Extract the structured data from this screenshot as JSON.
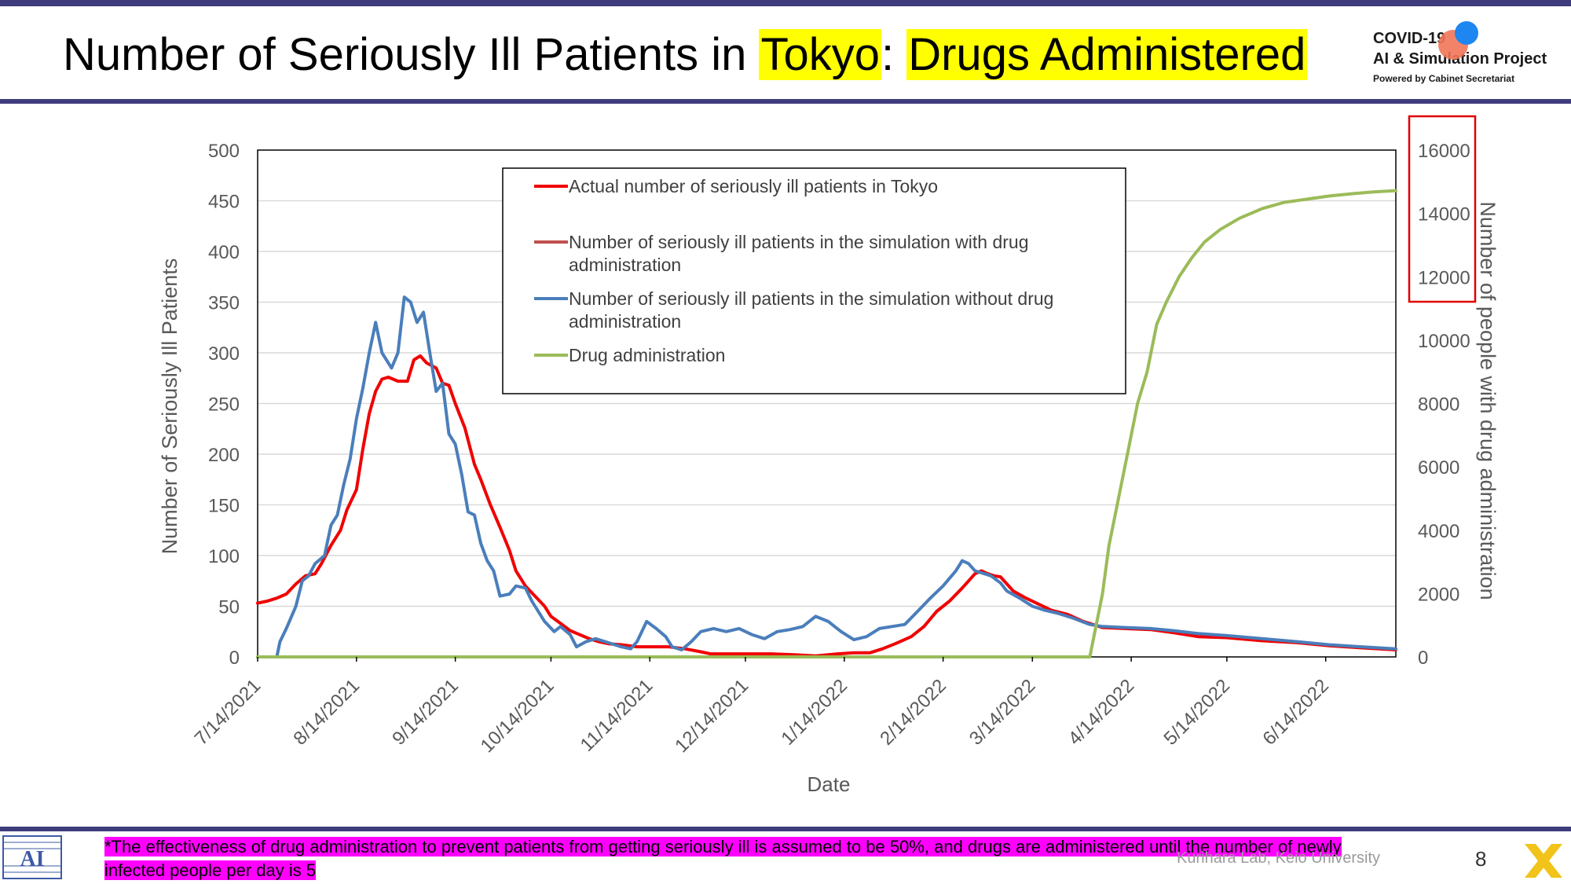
{
  "slide": {
    "title_prefix": "Number of Seriously Ill Patients in ",
    "title_hl1": "Tokyo",
    "title_sep": ": ",
    "title_hl2": "Drugs Administered",
    "logo_line1": "COVID-19",
    "logo_line2": "AI & Simulation Project",
    "logo_line3": "Powered by Cabinet Secretariat",
    "footnote": "*The effectiveness of drug administration to prevent patients from getting seriously ill is assumed to be 50%, and drugs are administered until the number of newly infected people per day is 5",
    "credit": "Kurihara Lab, Keio University",
    "page_number": "8",
    "lab_logo_text": "AI"
  },
  "chart_data": {
    "type": "line",
    "xlabel": "Date",
    "ylabel": "Number of Seriously Ill Patients",
    "y2label": "Number of people with drug administration",
    "ylim": [
      0,
      500
    ],
    "y2lim": [
      0,
      16000
    ],
    "yticks": [
      0,
      50,
      100,
      150,
      200,
      250,
      300,
      350,
      400,
      450,
      500
    ],
    "y2ticks": [
      0,
      2000,
      4000,
      6000,
      8000,
      10000,
      12000,
      14000,
      16000
    ],
    "xlim": [
      "2021-07-14",
      "2022-07-06"
    ],
    "xtick_dates": [
      "2021-07-14",
      "2021-08-14",
      "2021-09-14",
      "2021-10-14",
      "2021-11-14",
      "2021-12-14",
      "2022-01-14",
      "2022-02-14",
      "2022-03-14",
      "2022-04-14",
      "2022-05-14",
      "2022-06-14"
    ],
    "xtick_labels": [
      "7/14/2021",
      "8/14/2021",
      "9/14/2021",
      "10/14/2021",
      "11/14/2021",
      "12/14/2021",
      "1/14/2022",
      "2/14/2022",
      "3/14/2022",
      "4/14/2022",
      "5/14/2022",
      "6/14/2022"
    ],
    "grid": "horizontal",
    "legend_position": "top-center",
    "series": [
      {
        "name": "Actual number of seriously ill patients in Tokyo",
        "color": "#f00000",
        "axis": "left",
        "points": [
          [
            "2021-07-14",
            53
          ],
          [
            "2021-07-17",
            55
          ],
          [
            "2021-07-20",
            58
          ],
          [
            "2021-07-23",
            62
          ],
          [
            "2021-07-26",
            72
          ],
          [
            "2021-07-29",
            80
          ],
          [
            "2021-08-01",
            82
          ],
          [
            "2021-08-03",
            92
          ],
          [
            "2021-08-06",
            110
          ],
          [
            "2021-08-09",
            125
          ],
          [
            "2021-08-11",
            145
          ],
          [
            "2021-08-14",
            165
          ],
          [
            "2021-08-16",
            205
          ],
          [
            "2021-08-18",
            240
          ],
          [
            "2021-08-20",
            262
          ],
          [
            "2021-08-22",
            274
          ],
          [
            "2021-08-24",
            276
          ],
          [
            "2021-08-27",
            272
          ],
          [
            "2021-08-30",
            272
          ],
          [
            "2021-09-01",
            293
          ],
          [
            "2021-09-03",
            297
          ],
          [
            "2021-09-05",
            290
          ],
          [
            "2021-09-08",
            285
          ],
          [
            "2021-09-10",
            270
          ],
          [
            "2021-09-12",
            268
          ],
          [
            "2021-09-14",
            250
          ],
          [
            "2021-09-17",
            226
          ],
          [
            "2021-09-20",
            190
          ],
          [
            "2021-09-22",
            175
          ],
          [
            "2021-09-25",
            150
          ],
          [
            "2021-09-28",
            128
          ],
          [
            "2021-10-01",
            105
          ],
          [
            "2021-10-03",
            85
          ],
          [
            "2021-10-06",
            70
          ],
          [
            "2021-10-09",
            60
          ],
          [
            "2021-10-12",
            50
          ],
          [
            "2021-10-14",
            40
          ],
          [
            "2021-10-17",
            33
          ],
          [
            "2021-10-20",
            26
          ],
          [
            "2021-10-23",
            22
          ],
          [
            "2021-10-26",
            18
          ],
          [
            "2021-10-29",
            15
          ],
          [
            "2021-11-01",
            13
          ],
          [
            "2021-11-05",
            12
          ],
          [
            "2021-11-10",
            10
          ],
          [
            "2021-11-15",
            10
          ],
          [
            "2021-11-20",
            10
          ],
          [
            "2021-11-25",
            8
          ],
          [
            "2021-11-30",
            5
          ],
          [
            "2021-12-03",
            3
          ],
          [
            "2021-12-08",
            3
          ],
          [
            "2021-12-15",
            3
          ],
          [
            "2021-12-22",
            3
          ],
          [
            "2021-12-30",
            2
          ],
          [
            "2022-01-05",
            1
          ],
          [
            "2022-01-12",
            3
          ],
          [
            "2022-01-17",
            4
          ],
          [
            "2022-01-22",
            4
          ],
          [
            "2022-01-26",
            8
          ],
          [
            "2022-01-30",
            13
          ],
          [
            "2022-02-04",
            20
          ],
          [
            "2022-02-08",
            30
          ],
          [
            "2022-02-12",
            45
          ],
          [
            "2022-02-16",
            55
          ],
          [
            "2022-02-20",
            68
          ],
          [
            "2022-02-22",
            75
          ],
          [
            "2022-02-24",
            82
          ],
          [
            "2022-02-26",
            85
          ],
          [
            "2022-02-28",
            82
          ],
          [
            "2022-03-02",
            80
          ],
          [
            "2022-03-04",
            79
          ],
          [
            "2022-03-06",
            72
          ],
          [
            "2022-03-08",
            65
          ],
          [
            "2022-03-12",
            58
          ],
          [
            "2022-03-16",
            52
          ],
          [
            "2022-03-20",
            46
          ],
          [
            "2022-03-25",
            42
          ],
          [
            "2022-03-30",
            35
          ],
          [
            "2022-04-05",
            29
          ],
          [
            "2022-04-12",
            28
          ],
          [
            "2022-04-20",
            27
          ],
          [
            "2022-04-27",
            24
          ],
          [
            "2022-05-05",
            20
          ],
          [
            "2022-05-14",
            19
          ],
          [
            "2022-05-25",
            16
          ],
          [
            "2022-06-05",
            14
          ],
          [
            "2022-06-15",
            11
          ],
          [
            "2022-06-25",
            9
          ],
          [
            "2022-07-06",
            7
          ]
        ]
      },
      {
        "name": "Number of seriously ill patients in the simulation with drug administration",
        "color": "#c0504d",
        "axis": "left",
        "points": []
      },
      {
        "name": "Number of seriously ill patients in the simulation without drug administration",
        "color": "#4a7ebb",
        "axis": "left",
        "points": [
          [
            "2021-07-14",
            0
          ],
          [
            "2021-07-20",
            0
          ],
          [
            "2021-07-21",
            15
          ],
          [
            "2021-07-23",
            28
          ],
          [
            "2021-07-26",
            50
          ],
          [
            "2021-07-28",
            75
          ],
          [
            "2021-07-30",
            80
          ],
          [
            "2021-08-01",
            92
          ],
          [
            "2021-08-04",
            100
          ],
          [
            "2021-08-06",
            130
          ],
          [
            "2021-08-08",
            140
          ],
          [
            "2021-08-10",
            170
          ],
          [
            "2021-08-12",
            195
          ],
          [
            "2021-08-14",
            235
          ],
          [
            "2021-08-16",
            265
          ],
          [
            "2021-08-18",
            300
          ],
          [
            "2021-08-20",
            330
          ],
          [
            "2021-08-22",
            300
          ],
          [
            "2021-08-25",
            285
          ],
          [
            "2021-08-27",
            300
          ],
          [
            "2021-08-29",
            355
          ],
          [
            "2021-08-31",
            350
          ],
          [
            "2021-09-02",
            330
          ],
          [
            "2021-09-04",
            340
          ],
          [
            "2021-09-06",
            300
          ],
          [
            "2021-09-08",
            262
          ],
          [
            "2021-09-10",
            270
          ],
          [
            "2021-09-12",
            220
          ],
          [
            "2021-09-14",
            210
          ],
          [
            "2021-09-16",
            180
          ],
          [
            "2021-09-18",
            143
          ],
          [
            "2021-09-20",
            140
          ],
          [
            "2021-09-22",
            112
          ],
          [
            "2021-09-24",
            95
          ],
          [
            "2021-09-26",
            85
          ],
          [
            "2021-09-28",
            60
          ],
          [
            "2021-10-01",
            62
          ],
          [
            "2021-10-03",
            70
          ],
          [
            "2021-10-06",
            68
          ],
          [
            "2021-10-08",
            55
          ],
          [
            "2021-10-10",
            45
          ],
          [
            "2021-10-12",
            35
          ],
          [
            "2021-10-15",
            25
          ],
          [
            "2021-10-17",
            30
          ],
          [
            "2021-10-20",
            22
          ],
          [
            "2021-10-22",
            10
          ],
          [
            "2021-10-25",
            15
          ],
          [
            "2021-10-28",
            18
          ],
          [
            "2021-11-01",
            14
          ],
          [
            "2021-11-05",
            10
          ],
          [
            "2021-11-08",
            8
          ],
          [
            "2021-11-10",
            15
          ],
          [
            "2021-11-13",
            35
          ],
          [
            "2021-11-16",
            28
          ],
          [
            "2021-11-19",
            20
          ],
          [
            "2021-11-21",
            10
          ],
          [
            "2021-11-24",
            7
          ],
          [
            "2021-11-27",
            15
          ],
          [
            "2021-11-30",
            25
          ],
          [
            "2021-12-04",
            28
          ],
          [
            "2021-12-08",
            25
          ],
          [
            "2021-12-12",
            28
          ],
          [
            "2021-12-16",
            22
          ],
          [
            "2021-12-20",
            18
          ],
          [
            "2021-12-24",
            25
          ],
          [
            "2021-12-28",
            27
          ],
          [
            "2022-01-01",
            30
          ],
          [
            "2022-01-05",
            40
          ],
          [
            "2022-01-09",
            35
          ],
          [
            "2022-01-13",
            25
          ],
          [
            "2022-01-17",
            17
          ],
          [
            "2022-01-21",
            20
          ],
          [
            "2022-01-25",
            28
          ],
          [
            "2022-01-29",
            30
          ],
          [
            "2022-02-02",
            32
          ],
          [
            "2022-02-06",
            45
          ],
          [
            "2022-02-10",
            58
          ],
          [
            "2022-02-14",
            70
          ],
          [
            "2022-02-18",
            85
          ],
          [
            "2022-02-20",
            95
          ],
          [
            "2022-02-22",
            92
          ],
          [
            "2022-02-24",
            85
          ],
          [
            "2022-02-27",
            82
          ],
          [
            "2022-03-01",
            80
          ],
          [
            "2022-03-04",
            73
          ],
          [
            "2022-03-06",
            65
          ],
          [
            "2022-03-10",
            58
          ],
          [
            "2022-03-14",
            50
          ],
          [
            "2022-03-18",
            46
          ],
          [
            "2022-03-22",
            43
          ],
          [
            "2022-03-27",
            38
          ],
          [
            "2022-04-01",
            32
          ],
          [
            "2022-04-05",
            30
          ],
          [
            "2022-04-12",
            29
          ],
          [
            "2022-04-20",
            28
          ],
          [
            "2022-04-27",
            26
          ],
          [
            "2022-05-05",
            23
          ],
          [
            "2022-05-14",
            21
          ],
          [
            "2022-05-25",
            18
          ],
          [
            "2022-06-05",
            15
          ],
          [
            "2022-06-15",
            12
          ],
          [
            "2022-06-25",
            10
          ],
          [
            "2022-07-06",
            8
          ]
        ]
      },
      {
        "name": "Drug administration",
        "color": "#9bbb59",
        "axis": "right",
        "points": [
          [
            "2021-07-14",
            0
          ],
          [
            "2022-04-01",
            0
          ],
          [
            "2022-04-03",
            1000
          ],
          [
            "2022-04-05",
            2000
          ],
          [
            "2022-04-07",
            3500
          ],
          [
            "2022-04-10",
            5000
          ],
          [
            "2022-04-13",
            6500
          ],
          [
            "2022-04-16",
            8000
          ],
          [
            "2022-04-19",
            9000
          ],
          [
            "2022-04-22",
            10500
          ],
          [
            "2022-04-25",
            11200
          ],
          [
            "2022-04-29",
            12000
          ],
          [
            "2022-05-03",
            12600
          ],
          [
            "2022-05-07",
            13100
          ],
          [
            "2022-05-12",
            13500
          ],
          [
            "2022-05-18",
            13850
          ],
          [
            "2022-05-25",
            14150
          ],
          [
            "2022-06-01",
            14350
          ],
          [
            "2022-06-08",
            14450
          ],
          [
            "2022-06-15",
            14550
          ],
          [
            "2022-06-22",
            14620
          ],
          [
            "2022-06-29",
            14680
          ],
          [
            "2022-07-06",
            14720
          ]
        ]
      }
    ]
  }
}
